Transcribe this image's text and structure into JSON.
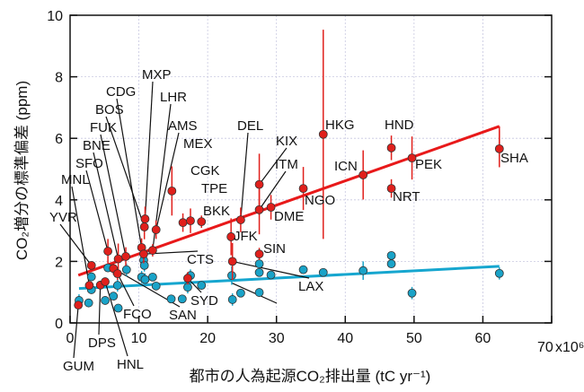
{
  "chart_data": {
    "type": "scatter",
    "xlabel": "都市の人為起源CO₂排出量 (tC yr⁻¹)",
    "ylabel": "CO₂増分の標準偏差 (ppm)",
    "x_scale_note": "x10⁶",
    "xlim": [
      0,
      70
    ],
    "ylim": [
      0,
      10
    ],
    "xticks": [
      0,
      10,
      20,
      30,
      40,
      50,
      60,
      70
    ],
    "yticks": [
      0,
      2,
      4,
      6,
      8,
      10
    ],
    "grid": true,
    "colors": {
      "red": "#e0201c",
      "blue": "#1aa3c8",
      "red_line": "#e8191a",
      "blue_line": "#16a6cf"
    },
    "series": [
      {
        "color_key": "red",
        "points": [
          {
            "x": 1.2,
            "y": 0.58,
            "err": 0.1,
            "label": "GUM"
          },
          {
            "x": 3.1,
            "y": 1.87,
            "err": 0.1,
            "label": "YVR"
          },
          {
            "x": 2.8,
            "y": 1.22,
            "err": 0.1,
            "label": "MNL"
          },
          {
            "x": 4.4,
            "y": 1.23,
            "err": 0.1,
            "label": "DPS"
          },
          {
            "x": 5.1,
            "y": 1.34,
            "err": 0.1,
            "label": "HNL"
          },
          {
            "x": 5.5,
            "y": 2.33,
            "err": 0.4,
            "label": "SFO"
          },
          {
            "x": 7.0,
            "y": 2.08,
            "err": 0.5,
            "label": "BNE"
          },
          {
            "x": 8.1,
            "y": 2.16,
            "err": 0.3,
            "label": "FUK"
          },
          {
            "x": 6.3,
            "y": 1.77,
            "err": 0.2,
            "label": "SAN"
          },
          {
            "x": 6.9,
            "y": 1.6,
            "err": 0.2,
            "label": "FCO"
          },
          {
            "x": 10.4,
            "y": 2.45,
            "err": 0.3,
            "label": "CDG"
          },
          {
            "x": 10.7,
            "y": 2.24,
            "err": 0.3,
            "label": "CTS"
          },
          {
            "x": 10.9,
            "y": 3.38,
            "err": 0.4,
            "label": "MXP"
          },
          {
            "x": 10.8,
            "y": 3.12,
            "err": 0.4,
            "label": "BOS"
          },
          {
            "x": 12.5,
            "y": 3.03,
            "err": 0.3,
            "label": "AMS"
          },
          {
            "x": 12.0,
            "y": 2.36,
            "err": 0.2,
            "label": "LHR"
          },
          {
            "x": 14.8,
            "y": 4.29,
            "err": 0.8,
            "label": "MEX"
          },
          {
            "x": 16.4,
            "y": 3.26,
            "err": 0.3,
            "label": "CGK"
          },
          {
            "x": 17.5,
            "y": 3.32,
            "err": 0.4,
            "label": "TPE"
          },
          {
            "x": 19.1,
            "y": 3.29,
            "err": 0.2,
            "label": "BKK"
          },
          {
            "x": 17.1,
            "y": 1.45,
            "err": 0.2,
            "label": "SYD"
          },
          {
            "x": 24.8,
            "y": 3.35,
            "err": 0.4,
            "label": "DEL"
          },
          {
            "x": 23.4,
            "y": 2.8,
            "err": 0.6,
            "label": "JFK"
          },
          {
            "x": 23.6,
            "y": 2.0,
            "err": 0.6,
            "label": "LAX"
          },
          {
            "x": 27.5,
            "y": 4.5,
            "err": 1.0,
            "label": "KIX"
          },
          {
            "x": 27.5,
            "y": 3.68,
            "err": 0.8,
            "label": "ITM"
          },
          {
            "x": 29.2,
            "y": 3.76,
            "err": 0.4,
            "label": "DME"
          },
          {
            "x": 27.5,
            "y": 2.24,
            "err": 0.2,
            "label": "SIN"
          },
          {
            "x": 33.9,
            "y": 4.37,
            "err": 0.7,
            "label": "NGO"
          },
          {
            "x": 36.8,
            "y": 6.13,
            "err": 3.4,
            "label": "HKG"
          },
          {
            "x": 42.6,
            "y": 4.81,
            "err": 0.8,
            "label": "ICN"
          },
          {
            "x": 46.7,
            "y": 5.69,
            "err": 0.4,
            "label": "HND"
          },
          {
            "x": 46.7,
            "y": 4.37,
            "err": 0.3,
            "label": "NRT"
          },
          {
            "x": 49.7,
            "y": 5.36,
            "err": 0.7,
            "label": "PEK"
          },
          {
            "x": 62.4,
            "y": 5.66,
            "err": 0.6,
            "label": "SHA"
          }
        ]
      },
      {
        "color_key": "blue",
        "points": [
          {
            "x": 1.3,
            "y": 0.73,
            "err": 0.2
          },
          {
            "x": 2.7,
            "y": 0.65,
            "err": 0.1
          },
          {
            "x": 3.1,
            "y": 1.5,
            "err": 0.1
          },
          {
            "x": 3.1,
            "y": 1.08,
            "err": 0.1
          },
          {
            "x": 5.1,
            "y": 0.73,
            "err": 0.1
          },
          {
            "x": 5.5,
            "y": 1.79,
            "err": 0.1
          },
          {
            "x": 6.3,
            "y": 0.87,
            "err": 0.1
          },
          {
            "x": 6.9,
            "y": 1.22,
            "err": 0.2
          },
          {
            "x": 7.0,
            "y": 0.48,
            "err": 0.1
          },
          {
            "x": 8.2,
            "y": 1.73,
            "err": 0.2
          },
          {
            "x": 10.7,
            "y": 2.04,
            "err": 0.2
          },
          {
            "x": 10.8,
            "y": 1.87,
            "err": 0.2
          },
          {
            "x": 10.4,
            "y": 1.49,
            "err": 0.2
          },
          {
            "x": 10.9,
            "y": 1.41,
            "err": 0.2
          },
          {
            "x": 12.0,
            "y": 1.49,
            "err": 0.1
          },
          {
            "x": 12.5,
            "y": 1.2,
            "err": 0.1
          },
          {
            "x": 14.7,
            "y": 0.78,
            "err": 0.1
          },
          {
            "x": 16.3,
            "y": 0.78,
            "err": 0.1
          },
          {
            "x": 17.1,
            "y": 1.16,
            "err": 0.2
          },
          {
            "x": 17.5,
            "y": 1.54,
            "err": 0.2
          },
          {
            "x": 19.1,
            "y": 1.22,
            "err": 0.1
          },
          {
            "x": 23.5,
            "y": 1.54,
            "err": 0.3
          },
          {
            "x": 23.6,
            "y": 0.76,
            "err": 0.2
          },
          {
            "x": 24.8,
            "y": 0.97,
            "err": 0.1
          },
          {
            "x": 27.5,
            "y": 1.92,
            "err": 0.2
          },
          {
            "x": 27.5,
            "y": 1.64,
            "err": 0.1
          },
          {
            "x": 27.5,
            "y": 0.99,
            "err": 0.1
          },
          {
            "x": 29.2,
            "y": 1.56,
            "err": 0.1
          },
          {
            "x": 33.9,
            "y": 1.73,
            "err": 0.1
          },
          {
            "x": 36.8,
            "y": 1.64,
            "err": 0.1
          },
          {
            "x": 42.6,
            "y": 1.7,
            "err": 0.3
          },
          {
            "x": 46.7,
            "y": 2.19,
            "err": 0.1
          },
          {
            "x": 46.7,
            "y": 1.92,
            "err": 0.1
          },
          {
            "x": 49.7,
            "y": 0.97,
            "err": 0.2
          },
          {
            "x": 62.4,
            "y": 1.61,
            "err": 0.2
          }
        ]
      }
    ],
    "fit_lines": [
      {
        "color_key": "red_line",
        "x": [
          1.2,
          62.4
        ],
        "y": [
          1.55,
          6.39
        ]
      },
      {
        "color_key": "blue_line",
        "x": [
          1.3,
          62.4
        ],
        "y": [
          1.12,
          1.84
        ]
      }
    ]
  }
}
